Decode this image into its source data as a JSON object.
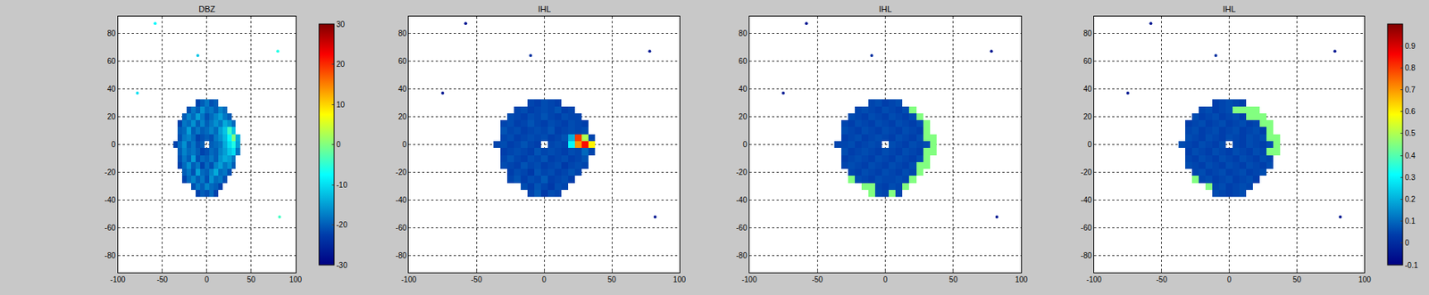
{
  "chart_data": [
    {
      "type": "heatmap",
      "title": "DBZ",
      "grid": true,
      "xlim": [
        -100,
        100
      ],
      "xticks": [
        -100,
        -50,
        0,
        50,
        100
      ],
      "ylim": [
        -92,
        92
      ],
      "yticks": [
        -80,
        -60,
        -40,
        -20,
        0,
        20,
        40,
        60,
        80
      ],
      "zlim": [
        -30,
        30
      ],
      "colorbar_ticks": [
        -30,
        -20,
        -10,
        0,
        10,
        20,
        30
      ],
      "x": [
        -35,
        -30,
        -25,
        -20,
        -15,
        -10,
        -5,
        0,
        5,
        10,
        15,
        20,
        25,
        30,
        35
      ],
      "y": [
        -35,
        -30,
        -25,
        -20,
        -15,
        -10,
        -5,
        0,
        5,
        10,
        15,
        20,
        25,
        30
      ],
      "z": [
        [
          null,
          null,
          null,
          null,
          null,
          -22,
          -20,
          -21,
          -19,
          -22,
          null,
          null,
          null,
          null,
          null
        ],
        [
          null,
          null,
          null,
          null,
          -21,
          -18,
          -20,
          -17,
          -19,
          -20,
          -22,
          null,
          null,
          null,
          null
        ],
        [
          null,
          null,
          -22,
          -19,
          -17,
          -20,
          -18,
          -21,
          -16,
          -19,
          -18,
          -21,
          null,
          null,
          null
        ],
        [
          null,
          null,
          -20,
          -18,
          -21,
          -15,
          -19,
          -20,
          -17,
          -14,
          -19,
          -18,
          -21,
          null,
          null
        ],
        [
          null,
          -22,
          -19,
          -16,
          -20,
          -18,
          -22,
          -19,
          -21,
          -17,
          -15,
          -18,
          -16,
          -20,
          null
        ],
        [
          null,
          -21,
          -18,
          -20,
          -15,
          -21,
          -19,
          -20,
          -18,
          -20,
          -16,
          -14,
          -15,
          -18,
          null
        ],
        [
          null,
          -20,
          -17,
          -19,
          -18,
          -20,
          -22,
          -21,
          -19,
          -20,
          -17,
          -15,
          -12,
          -10,
          -18
        ],
        [
          -22,
          -19,
          -16,
          -20,
          -18,
          -21,
          -20,
          null,
          -20,
          -19,
          -18,
          -14,
          -10,
          -6,
          -15
        ],
        [
          null,
          -21,
          -18,
          -17,
          -19,
          -22,
          -21,
          -20,
          -21,
          -18,
          -16,
          -13,
          -8,
          0,
          -14
        ],
        [
          null,
          -20,
          -19,
          -15,
          -20,
          -18,
          -20,
          -19,
          -17,
          -19,
          -15,
          -12,
          -4,
          -12,
          null
        ],
        [
          null,
          -22,
          -18,
          -19,
          -16,
          -20,
          -17,
          -20,
          -18,
          -16,
          -18,
          -14,
          -16,
          -19,
          null
        ],
        [
          null,
          null,
          -20,
          -17,
          -19,
          -15,
          -18,
          -21,
          -19,
          -17,
          -15,
          -18,
          -20,
          null,
          null
        ],
        [
          null,
          null,
          null,
          -21,
          -18,
          -20,
          -16,
          -19,
          -18,
          -20,
          -17,
          -19,
          null,
          null,
          null
        ],
        [
          null,
          null,
          null,
          null,
          null,
          -22,
          -20,
          -18,
          -21,
          -20,
          null,
          null,
          null,
          null,
          null
        ]
      ],
      "points": {
        "x": [
          -58,
          -10,
          -78,
          80,
          82
        ],
        "y": [
          87,
          64,
          37,
          67,
          -52
        ],
        "values": [
          -8,
          -12,
          -10,
          -6,
          -4
        ]
      }
    },
    {
      "type": "heatmap",
      "title": "IHL",
      "grid": true,
      "xlim": [
        -100,
        100
      ],
      "xticks": [
        -100,
        -50,
        0,
        50,
        100
      ],
      "ylim": [
        -92,
        92
      ],
      "yticks": [
        -80,
        -60,
        -40,
        -20,
        0,
        20,
        40,
        60,
        80
      ],
      "zlim": [
        -0.1,
        1
      ],
      "x": [
        -35,
        -30,
        -25,
        -20,
        -15,
        -10,
        -5,
        0,
        5,
        10,
        15,
        20,
        25,
        30,
        35
      ],
      "y": [
        -35,
        -30,
        -25,
        -20,
        -15,
        -10,
        -5,
        0,
        5,
        10,
        15,
        20,
        25,
        30
      ],
      "z": [
        [
          null,
          null,
          null,
          null,
          null,
          0.05,
          0.08,
          0.03,
          0.06,
          0.05,
          null,
          null,
          null,
          null,
          null
        ],
        [
          null,
          null,
          null,
          null,
          0.06,
          0.04,
          0.07,
          0.05,
          0.03,
          0.06,
          0.05,
          null,
          null,
          null,
          null
        ],
        [
          null,
          null,
          0.05,
          0.07,
          0.04,
          0.06,
          0.05,
          0.08,
          0.04,
          0.05,
          0.06,
          0.04,
          null,
          null,
          null
        ],
        [
          null,
          null,
          0.04,
          0.06,
          0.05,
          0.03,
          0.07,
          0.05,
          0.06,
          0.04,
          0.05,
          0.07,
          0.05,
          null,
          null
        ],
        [
          null,
          0.06,
          0.05,
          0.04,
          0.07,
          0.05,
          0.06,
          0.04,
          0.05,
          0.06,
          0.03,
          0.05,
          0.06,
          0.05,
          null
        ],
        [
          null,
          0.05,
          0.07,
          0.05,
          0.04,
          0.06,
          0.05,
          0.07,
          0.04,
          0.05,
          0.06,
          0.04,
          0.05,
          0.07,
          null
        ],
        [
          null,
          0.04,
          0.05,
          0.06,
          0.05,
          0.04,
          0.07,
          0.05,
          0.06,
          0.05,
          0.04,
          0.06,
          0.05,
          0.1,
          0.05
        ],
        [
          0.05,
          0.06,
          0.04,
          0.05,
          0.07,
          0.05,
          0.04,
          null,
          0.05,
          0.06,
          0.05,
          0.3,
          0.7,
          0.85,
          0.6
        ],
        [
          null,
          0.05,
          0.06,
          0.04,
          0.05,
          0.06,
          0.05,
          0.06,
          0.04,
          0.05,
          0.07,
          0.2,
          0.8,
          0.5,
          0.05
        ],
        [
          null,
          0.07,
          0.05,
          0.06,
          0.04,
          0.05,
          0.06,
          0.05,
          0.07,
          0.04,
          0.05,
          0.06,
          0.05,
          0.06,
          null
        ],
        [
          null,
          0.05,
          0.06,
          0.04,
          0.05,
          0.07,
          0.05,
          0.04,
          0.06,
          0.05,
          0.04,
          0.06,
          0.05,
          0.04,
          null
        ],
        [
          null,
          null,
          0.06,
          0.05,
          0.04,
          0.06,
          0.05,
          0.07,
          0.05,
          0.04,
          0.06,
          0.05,
          0.05,
          null,
          null
        ],
        [
          null,
          null,
          null,
          0.05,
          0.06,
          0.04,
          0.05,
          0.06,
          0.05,
          0.07,
          0.04,
          0.05,
          null,
          null,
          null
        ],
        [
          null,
          null,
          null,
          null,
          null,
          0.05,
          0.04,
          0.06,
          0.05,
          0.04,
          null,
          null,
          null,
          null,
          null
        ]
      ],
      "points": {
        "x": [
          -58,
          -10,
          -75,
          78,
          82
        ],
        "y": [
          87,
          64,
          37,
          67,
          -52
        ],
        "values": [
          -0.05,
          0,
          -0.05,
          -0.05,
          -0.05
        ]
      }
    },
    {
      "type": "heatmap",
      "title": "IHL",
      "grid": true,
      "xlim": [
        -100,
        100
      ],
      "xticks": [
        -100,
        -50,
        0,
        50,
        100
      ],
      "ylim": [
        -92,
        92
      ],
      "yticks": [
        -80,
        -60,
        -40,
        -20,
        0,
        20,
        40,
        60,
        80
      ],
      "zlim": [
        -0.1,
        1
      ],
      "x": [
        -35,
        -30,
        -25,
        -20,
        -15,
        -10,
        -5,
        0,
        5,
        10,
        15,
        20,
        25,
        30,
        35
      ],
      "y": [
        -35,
        -30,
        -25,
        -20,
        -15,
        -10,
        -5,
        0,
        5,
        10,
        15,
        20,
        25,
        30
      ],
      "z": [
        [
          null,
          null,
          null,
          null,
          null,
          0.45,
          0.06,
          0.05,
          0.45,
          0.05,
          null,
          null,
          null,
          null,
          null
        ],
        [
          null,
          null,
          null,
          null,
          0.45,
          0.45,
          0.05,
          0.04,
          0.06,
          0.05,
          0.45,
          null,
          null,
          null,
          null
        ],
        [
          null,
          null,
          0.45,
          0.06,
          0.05,
          0.04,
          0.06,
          0.05,
          0.05,
          0.06,
          0.05,
          0.45,
          null,
          null,
          null
        ],
        [
          null,
          null,
          0.05,
          0.04,
          0.06,
          0.05,
          0.04,
          0.06,
          0.05,
          0.04,
          0.06,
          0.05,
          0.45,
          null,
          null
        ],
        [
          null,
          0.05,
          0.06,
          0.05,
          0.04,
          0.06,
          0.05,
          0.04,
          0.06,
          0.05,
          0.04,
          0.06,
          0.45,
          0.45,
          null
        ],
        [
          null,
          0.04,
          0.05,
          0.06,
          0.05,
          0.04,
          0.06,
          0.05,
          0.04,
          0.06,
          0.05,
          0.04,
          0.06,
          0.45,
          null
        ],
        [
          null,
          0.06,
          0.04,
          0.05,
          0.06,
          0.05,
          0.04,
          0.06,
          0.05,
          0.04,
          0.06,
          0.05,
          0.04,
          0.45,
          0.45
        ],
        [
          0.05,
          0.05,
          0.06,
          0.04,
          0.05,
          0.06,
          0.05,
          null,
          0.06,
          0.05,
          0.04,
          0.06,
          0.05,
          0.06,
          0.45
        ],
        [
          null,
          0.04,
          0.05,
          0.06,
          0.04,
          0.05,
          0.06,
          0.05,
          0.04,
          0.06,
          0.05,
          0.04,
          0.06,
          0.45,
          0.45
        ],
        [
          null,
          0.06,
          0.05,
          0.04,
          0.06,
          0.05,
          0.04,
          0.06,
          0.05,
          0.04,
          0.06,
          0.05,
          0.04,
          0.45,
          null
        ],
        [
          null,
          0.05,
          0.04,
          0.06,
          0.05,
          0.04,
          0.06,
          0.05,
          0.04,
          0.06,
          0.05,
          0.04,
          0.06,
          0.45,
          null
        ],
        [
          null,
          null,
          0.06,
          0.05,
          0.04,
          0.06,
          0.05,
          0.04,
          0.06,
          0.05,
          0.04,
          0.06,
          0.45,
          null,
          null
        ],
        [
          null,
          null,
          null,
          0.05,
          0.06,
          0.05,
          0.04,
          0.06,
          0.05,
          0.04,
          0.06,
          0.45,
          null,
          null,
          null
        ],
        [
          null,
          null,
          null,
          null,
          null,
          0.05,
          0.06,
          0.04,
          0.05,
          0.06,
          null,
          null,
          null,
          null,
          null
        ]
      ],
      "points": {
        "x": [
          -58,
          -10,
          -75,
          78,
          82
        ],
        "y": [
          87,
          64,
          37,
          67,
          -52
        ],
        "values": [
          -0.05,
          0,
          -0.05,
          -0.05,
          -0.05
        ]
      }
    },
    {
      "type": "heatmap",
      "title": "IHL",
      "grid": true,
      "xlim": [
        -100,
        100
      ],
      "xticks": [
        -100,
        -50,
        0,
        50,
        100
      ],
      "ylim": [
        -92,
        92
      ],
      "yticks": [
        -80,
        -60,
        -40,
        -20,
        0,
        20,
        40,
        60,
        80
      ],
      "zlim": [
        -0.1,
        1
      ],
      "colorbar_ticks": [
        -0.1,
        0,
        0.1,
        0.2,
        0.3,
        0.4,
        0.5,
        0.6,
        0.7,
        0.8,
        0.9
      ],
      "x": [
        -35,
        -30,
        -25,
        -20,
        -15,
        -10,
        -5,
        0,
        5,
        10,
        15,
        20,
        25,
        30,
        35
      ],
      "y": [
        -35,
        -30,
        -25,
        -20,
        -15,
        -10,
        -5,
        0,
        5,
        10,
        15,
        20,
        25,
        30
      ],
      "z": [
        [
          null,
          null,
          null,
          null,
          null,
          0.06,
          0.05,
          0.04,
          0.05,
          0.06,
          null,
          null,
          null,
          null,
          null
        ],
        [
          null,
          null,
          null,
          null,
          0.45,
          0.05,
          0.06,
          0.04,
          0.05,
          0.06,
          0.05,
          null,
          null,
          null,
          null
        ],
        [
          null,
          null,
          0.45,
          0.05,
          0.06,
          0.04,
          0.05,
          0.06,
          0.04,
          0.05,
          0.06,
          0.04,
          null,
          null,
          null
        ],
        [
          null,
          null,
          0.05,
          0.06,
          0.04,
          0.05,
          0.06,
          0.04,
          0.05,
          0.06,
          0.04,
          0.05,
          0.06,
          null,
          null
        ],
        [
          null,
          0.06,
          0.05,
          0.04,
          0.06,
          0.05,
          0.04,
          0.06,
          0.05,
          0.04,
          0.06,
          0.05,
          0.04,
          0.06,
          null
        ],
        [
          null,
          0.05,
          0.04,
          0.06,
          0.05,
          0.04,
          0.06,
          0.05,
          0.04,
          0.06,
          0.05,
          0.04,
          0.06,
          0.05,
          null
        ],
        [
          null,
          0.04,
          0.06,
          0.05,
          0.04,
          0.06,
          0.05,
          0.04,
          0.06,
          0.05,
          0.04,
          0.06,
          0.05,
          0.45,
          0.45
        ],
        [
          0.06,
          0.05,
          0.04,
          0.06,
          0.05,
          0.04,
          0.06,
          null,
          0.05,
          0.04,
          0.06,
          0.05,
          0.04,
          0.06,
          0.45
        ],
        [
          null,
          0.06,
          0.05,
          0.04,
          0.06,
          0.05,
          0.04,
          0.06,
          0.05,
          0.04,
          0.06,
          0.05,
          0.06,
          0.45,
          0.45
        ],
        [
          null,
          0.05,
          0.06,
          0.04,
          0.05,
          0.06,
          0.04,
          0.05,
          0.06,
          0.04,
          0.05,
          0.06,
          0.04,
          0.45,
          null
        ],
        [
          null,
          0.04,
          0.05,
          0.06,
          0.04,
          0.05,
          0.06,
          0.04,
          0.05,
          0.06,
          0.04,
          0.05,
          0.45,
          0.45,
          null
        ],
        [
          null,
          null,
          0.06,
          0.04,
          0.05,
          0.06,
          0.04,
          0.05,
          0.06,
          0.04,
          0.45,
          0.45,
          0.45,
          null,
          null
        ],
        [
          null,
          null,
          null,
          0.05,
          0.06,
          0.04,
          0.05,
          0.06,
          0.45,
          0.45,
          0.45,
          0.45,
          null,
          null,
          null
        ],
        [
          null,
          null,
          null,
          null,
          null,
          0.04,
          0.05,
          0.06,
          0.05,
          0.04,
          null,
          null,
          null,
          null,
          null
        ]
      ],
      "points": {
        "x": [
          -58,
          -10,
          -75,
          78,
          82
        ],
        "y": [
          87,
          64,
          37,
          67,
          -52
        ],
        "values": [
          -0.05,
          0,
          -0.05,
          -0.05,
          -0.05
        ]
      }
    }
  ]
}
